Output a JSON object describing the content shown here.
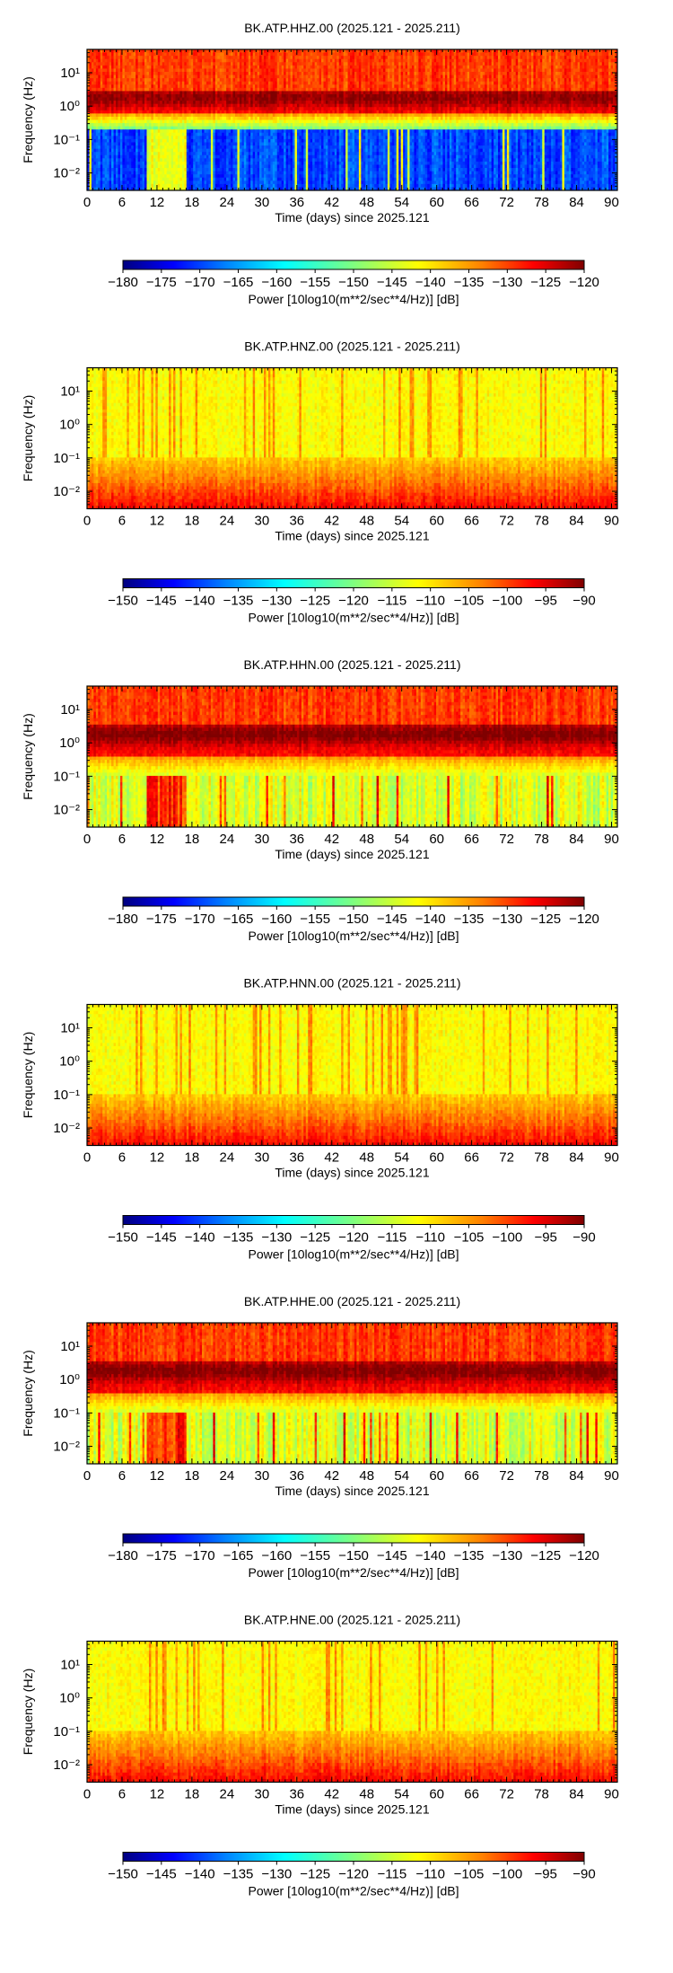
{
  "chart_data": [
    {
      "type": "heatmap",
      "title": "BK.ATP.HHZ.00 (2025.121 - 2025.211)",
      "xlabel": "Time (days) since 2025.121",
      "ylabel": "Frequency (Hz)",
      "x_ticks": [
        "0",
        "6",
        "12",
        "18",
        "24",
        "30",
        "36",
        "42",
        "48",
        "54",
        "60",
        "66",
        "72",
        "78",
        "84",
        "90"
      ],
      "y_ticks": [
        "10⁻²",
        "10⁻¹",
        "10⁰",
        "10¹"
      ],
      "xlim": [
        0,
        91
      ],
      "ylim": [
        0.003,
        50
      ],
      "y_scale": "log",
      "colorbar": {
        "label": "Power [10log10(m**2/sec**4/Hz)] [dB]",
        "ticks": [
          "−180",
          "−175",
          "−170",
          "−165",
          "−160",
          "−155",
          "−150",
          "−145",
          "−140",
          "−135",
          "−130",
          "−125",
          "−120"
        ],
        "range": [
          -180,
          -120
        ]
      }
    },
    {
      "type": "heatmap",
      "title": "BK.ATP.HNZ.00 (2025.121 - 2025.211)",
      "xlabel": "Time (days) since 2025.121",
      "ylabel": "Frequency (Hz)",
      "x_ticks": [
        "0",
        "6",
        "12",
        "18",
        "24",
        "30",
        "36",
        "42",
        "48",
        "54",
        "60",
        "66",
        "72",
        "78",
        "84",
        "90"
      ],
      "y_ticks": [
        "10⁻²",
        "10⁻¹",
        "10⁰",
        "10¹"
      ],
      "xlim": [
        0,
        91
      ],
      "ylim": [
        0.003,
        50
      ],
      "y_scale": "log",
      "colorbar": {
        "label": "Power [10log10(m**2/sec**4/Hz)] [dB]",
        "ticks": [
          "−150",
          "−145",
          "−140",
          "−135",
          "−130",
          "−125",
          "−120",
          "−115",
          "−110",
          "−105",
          "−100",
          "−95",
          "−90"
        ],
        "range": [
          -150,
          -90
        ]
      }
    },
    {
      "type": "heatmap",
      "title": "BK.ATP.HHN.00 (2025.121 - 2025.211)",
      "xlabel": "Time (days) since 2025.121",
      "ylabel": "Frequency (Hz)",
      "x_ticks": [
        "0",
        "6",
        "12",
        "18",
        "24",
        "30",
        "36",
        "42",
        "48",
        "54",
        "60",
        "66",
        "72",
        "78",
        "84",
        "90"
      ],
      "y_ticks": [
        "10⁻²",
        "10⁻¹",
        "10⁰",
        "10¹"
      ],
      "xlim": [
        0,
        91
      ],
      "ylim": [
        0.003,
        50
      ],
      "y_scale": "log",
      "colorbar": {
        "label": "Power [10log10(m**2/sec**4/Hz)] [dB]",
        "ticks": [
          "−180",
          "−175",
          "−170",
          "−165",
          "−160",
          "−155",
          "−150",
          "−145",
          "−140",
          "−135",
          "−130",
          "−125",
          "−120"
        ],
        "range": [
          -180,
          -120
        ]
      }
    },
    {
      "type": "heatmap",
      "title": "BK.ATP.HNN.00 (2025.121 - 2025.211)",
      "xlabel": "Time (days) since 2025.121",
      "ylabel": "Frequency (Hz)",
      "x_ticks": [
        "0",
        "6",
        "12",
        "18",
        "24",
        "30",
        "36",
        "42",
        "48",
        "54",
        "60",
        "66",
        "72",
        "78",
        "84",
        "90"
      ],
      "y_ticks": [
        "10⁻²",
        "10⁻¹",
        "10⁰",
        "10¹"
      ],
      "xlim": [
        0,
        91
      ],
      "ylim": [
        0.003,
        50
      ],
      "y_scale": "log",
      "colorbar": {
        "label": "Power [10log10(m**2/sec**4/Hz)] [dB]",
        "ticks": [
          "−150",
          "−145",
          "−140",
          "−135",
          "−130",
          "−125",
          "−120",
          "−115",
          "−110",
          "−105",
          "−100",
          "−95",
          "−90"
        ],
        "range": [
          -150,
          -90
        ]
      }
    },
    {
      "type": "heatmap",
      "title": "BK.ATP.HHE.00 (2025.121 - 2025.211)",
      "xlabel": "Time (days) since 2025.121",
      "ylabel": "Frequency (Hz)",
      "x_ticks": [
        "0",
        "6",
        "12",
        "18",
        "24",
        "30",
        "36",
        "42",
        "48",
        "54",
        "60",
        "66",
        "72",
        "78",
        "84",
        "90"
      ],
      "y_ticks": [
        "10⁻²",
        "10⁻¹",
        "10⁰",
        "10¹"
      ],
      "xlim": [
        0,
        91
      ],
      "ylim": [
        0.003,
        50
      ],
      "y_scale": "log",
      "colorbar": {
        "label": "Power [10log10(m**2/sec**4/Hz)] [dB]",
        "ticks": [
          "−180",
          "−175",
          "−170",
          "−165",
          "−160",
          "−155",
          "−150",
          "−145",
          "−140",
          "−135",
          "−130",
          "−125",
          "−120"
        ],
        "range": [
          -180,
          -120
        ]
      }
    },
    {
      "type": "heatmap",
      "title": "BK.ATP.HNE.00 (2025.121 - 2025.211)",
      "xlabel": "Time (days) since 2025.121",
      "ylabel": "Frequency (Hz)",
      "x_ticks": [
        "0",
        "6",
        "12",
        "18",
        "24",
        "30",
        "36",
        "42",
        "48",
        "54",
        "60",
        "66",
        "72",
        "78",
        "84",
        "90"
      ],
      "y_ticks": [
        "10⁻²",
        "10⁻¹",
        "10⁰",
        "10¹"
      ],
      "xlim": [
        0,
        91
      ],
      "ylim": [
        0.003,
        50
      ],
      "y_scale": "log",
      "colorbar": {
        "label": "Power [10log10(m**2/sec**4/Hz)] [dB]",
        "ticks": [
          "−150",
          "−145",
          "−140",
          "−135",
          "−130",
          "−125",
          "−120",
          "−115",
          "−110",
          "−105",
          "−100",
          "−95",
          "−90"
        ],
        "range": [
          -150,
          -90
        ]
      }
    }
  ]
}
